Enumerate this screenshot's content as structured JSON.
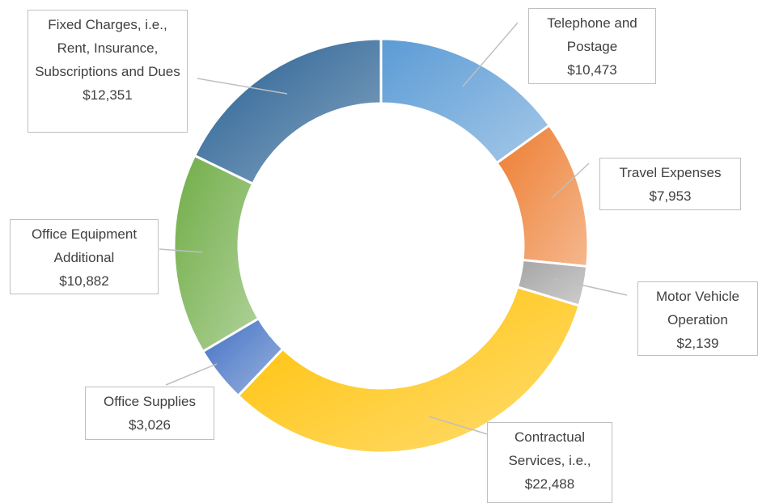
{
  "chart_data": {
    "type": "donut",
    "categories": [
      "Telephone and Postage",
      "Travel Expenses",
      "Motor Vehicle Operation",
      "Contractual Services, i.e.,",
      "Office Supplies",
      "Office Equipment Additional",
      "Fixed Charges, i.e., Rent, Insurance, Subscriptions and Dues"
    ],
    "values": [
      10473,
      7953,
      2139,
      22488,
      3026,
      10882,
      12351
    ],
    "value_labels": [
      "$10,473",
      "$7,953",
      "$2,139",
      "$22,488",
      "$3,026",
      "$10,882",
      "$12,351"
    ],
    "colors": [
      "#5b9bd5",
      "#ed7d31",
      "#a5a5a5",
      "#ffc000",
      "#4472c4",
      "#70ad47",
      "#255e91"
    ]
  }
}
